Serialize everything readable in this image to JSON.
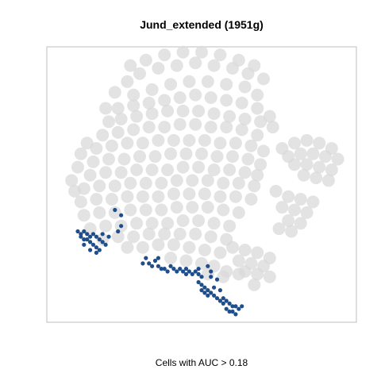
{
  "chart_data": {
    "type": "scatter",
    "title": "Jund_extended (1951g)",
    "xlabel": "Cells with AUC > 0.18",
    "ylabel": "",
    "grid": false,
    "legend": "none",
    "colors": {
      "background_cells": "#d9d9d9",
      "auc_cells": "#1f4e8c",
      "panel_border": "#bebebe"
    },
    "series": [
      {
        "role": "all cells",
        "color": "#d9d9d9",
        "points": [
          [
            -22,
            35
          ],
          [
            -18,
            38
          ],
          [
            -12,
            40
          ],
          [
            -6,
            41
          ],
          [
            0,
            42
          ],
          [
            6,
            41
          ],
          [
            12,
            40
          ],
          [
            17,
            38
          ],
          [
            -20,
            30
          ],
          [
            -14,
            32
          ],
          [
            -8,
            34
          ],
          [
            -2,
            35
          ],
          [
            4,
            35
          ],
          [
            10,
            34
          ],
          [
            16,
            33
          ],
          [
            20,
            30
          ],
          [
            -25,
            25
          ],
          [
            -20,
            26
          ],
          [
            -15,
            27
          ],
          [
            -10,
            28
          ],
          [
            -5,
            29
          ],
          [
            0,
            30
          ],
          [
            5,
            29
          ],
          [
            10,
            28
          ],
          [
            15,
            27
          ],
          [
            20,
            25
          ],
          [
            24,
            22
          ],
          [
            25,
            18
          ],
          [
            -28,
            20
          ],
          [
            -24,
            21
          ],
          [
            -19,
            22
          ],
          [
            -14,
            23
          ],
          [
            -9,
            24
          ],
          [
            -4,
            24
          ],
          [
            1,
            24
          ],
          [
            6,
            23
          ],
          [
            11,
            22
          ],
          [
            16,
            21
          ],
          [
            21,
            20
          ],
          [
            -30,
            15
          ],
          [
            -25,
            16
          ],
          [
            -20,
            17
          ],
          [
            -15,
            18
          ],
          [
            -10,
            18
          ],
          [
            -5,
            19
          ],
          [
            0,
            19
          ],
          [
            5,
            18
          ],
          [
            10,
            18
          ],
          [
            15,
            17
          ],
          [
            20,
            15
          ],
          [
            -32,
            10
          ],
          [
            -27,
            11
          ],
          [
            -22,
            12
          ],
          [
            -17,
            12
          ],
          [
            -12,
            13
          ],
          [
            -7,
            13
          ],
          [
            -2,
            13
          ],
          [
            3,
            13
          ],
          [
            8,
            12
          ],
          [
            13,
            12
          ],
          [
            18,
            11
          ],
          [
            22,
            9
          ],
          [
            -33,
            5
          ],
          [
            -28,
            6
          ],
          [
            -23,
            6
          ],
          [
            -18,
            7
          ],
          [
            -13,
            7
          ],
          [
            -8,
            8
          ],
          [
            -3,
            8
          ],
          [
            2,
            8
          ],
          [
            7,
            7
          ],
          [
            12,
            7
          ],
          [
            17,
            6
          ],
          [
            21,
            4
          ],
          [
            -34,
            0
          ],
          [
            -29,
            1
          ],
          [
            -24,
            1
          ],
          [
            -19,
            2
          ],
          [
            -14,
            2
          ],
          [
            -9,
            2
          ],
          [
            -4,
            3
          ],
          [
            1,
            3
          ],
          [
            6,
            2
          ],
          [
            11,
            2
          ],
          [
            16,
            1
          ],
          [
            20,
            0
          ],
          [
            -36,
            -5
          ],
          [
            -31,
            -4
          ],
          [
            -26,
            -4
          ],
          [
            -21,
            -3
          ],
          [
            -16,
            -3
          ],
          [
            -11,
            -3
          ],
          [
            -6,
            -2
          ],
          [
            -1,
            -2
          ],
          [
            4,
            -2
          ],
          [
            9,
            -3
          ],
          [
            14,
            -3
          ],
          [
            19,
            -4
          ],
          [
            -37,
            -10
          ],
          [
            -32,
            -9
          ],
          [
            -27,
            -9
          ],
          [
            -22,
            -8
          ],
          [
            -17,
            -8
          ],
          [
            -12,
            -8
          ],
          [
            -7,
            -7
          ],
          [
            -2,
            -7
          ],
          [
            3,
            -7
          ],
          [
            8,
            -8
          ],
          [
            13,
            -8
          ],
          [
            18,
            -9
          ],
          [
            -36,
            -15
          ],
          [
            -31,
            -14
          ],
          [
            -26,
            -14
          ],
          [
            -21,
            -13
          ],
          [
            -16,
            -13
          ],
          [
            -11,
            -13
          ],
          [
            -6,
            -12
          ],
          [
            -1,
            -12
          ],
          [
            4,
            -12
          ],
          [
            9,
            -13
          ],
          [
            14,
            -14
          ],
          [
            -34,
            -20
          ],
          [
            -29,
            -19
          ],
          [
            -24,
            -19
          ],
          [
            -19,
            -18
          ],
          [
            -14,
            -18
          ],
          [
            -9,
            -18
          ],
          [
            -4,
            -17
          ],
          [
            1,
            -17
          ],
          [
            6,
            -18
          ],
          [
            11,
            -19
          ],
          [
            -30,
            -24
          ],
          [
            -25,
            -23
          ],
          [
            -20,
            -23
          ],
          [
            -15,
            -22
          ],
          [
            -10,
            -22
          ],
          [
            -5,
            -22
          ],
          [
            0,
            -22
          ],
          [
            5,
            -23
          ],
          [
            10,
            -24
          ],
          [
            -22,
            -27
          ],
          [
            -17,
            -27
          ],
          [
            -12,
            -26
          ],
          [
            -7,
            -26
          ],
          [
            -2,
            -27
          ],
          [
            3,
            -28
          ],
          [
            8,
            -29
          ],
          [
            -8,
            -31
          ],
          [
            -3,
            -32
          ],
          [
            2,
            -33
          ],
          [
            6,
            -34
          ],
          [
            10,
            -36
          ],
          [
            14,
            -37
          ],
          [
            9,
            -38
          ],
          [
            4,
            -37
          ],
          [
            -40,
            -2
          ],
          [
            -39,
            -6
          ],
          [
            -38,
            3
          ],
          [
            -37,
            8
          ],
          [
            -35,
            12
          ],
          [
            28,
            10
          ],
          [
            32,
            12
          ],
          [
            36,
            13
          ],
          [
            40,
            12
          ],
          [
            44,
            10
          ],
          [
            30,
            7
          ],
          [
            34,
            8
          ],
          [
            38,
            8
          ],
          [
            42,
            7
          ],
          [
            46,
            6
          ],
          [
            32,
            4
          ],
          [
            36,
            4
          ],
          [
            40,
            3
          ],
          [
            44,
            2
          ],
          [
            35,
            0
          ],
          [
            39,
            -1
          ],
          [
            43,
            -2
          ],
          [
            26,
            -6
          ],
          [
            30,
            -8
          ],
          [
            34,
            -9
          ],
          [
            38,
            -10
          ],
          [
            28,
            -12
          ],
          [
            32,
            -13
          ],
          [
            36,
            -14
          ],
          [
            30,
            -17
          ],
          [
            34,
            -18
          ],
          [
            27,
            -20
          ],
          [
            31,
            -21
          ],
          [
            12,
            -27
          ],
          [
            16,
            -28
          ],
          [
            20,
            -29
          ],
          [
            24,
            -31
          ],
          [
            14,
            -32
          ],
          [
            18,
            -33
          ],
          [
            22,
            -34
          ],
          [
            16,
            -36
          ],
          [
            20,
            -37
          ],
          [
            24,
            -38
          ],
          [
            19,
            -41
          ],
          [
            -16,
            43
          ],
          [
            -10,
            45
          ],
          [
            -4,
            46
          ],
          [
            2,
            46
          ],
          [
            8,
            45
          ],
          [
            14,
            43
          ],
          [
            19,
            41
          ],
          [
            22,
            36
          ],
          [
            -21,
            41
          ],
          [
            -26,
            31
          ],
          [
            -29,
            25
          ]
        ]
      },
      {
        "role": "cells with AUC > 0.18",
        "color": "#1f4e8c",
        "points": [
          [
            -38,
            -21
          ],
          [
            -37,
            -22
          ],
          [
            -36,
            -21
          ],
          [
            -35,
            -22
          ],
          [
            -34,
            -23
          ],
          [
            -37,
            -23
          ],
          [
            -36,
            -24
          ],
          [
            -35,
            -24
          ],
          [
            -33,
            -22
          ],
          [
            -32,
            -23
          ],
          [
            -34,
            -25
          ],
          [
            -33,
            -26
          ],
          [
            -32,
            -27
          ],
          [
            -31,
            -24
          ],
          [
            -30,
            -25
          ],
          [
            -31,
            -28
          ],
          [
            -29,
            -26
          ],
          [
            -36,
            -26
          ],
          [
            -34,
            -28
          ],
          [
            -32,
            -29
          ],
          [
            -30,
            -22
          ],
          [
            -28,
            -23
          ],
          [
            -26,
            -13
          ],
          [
            -24,
            -15
          ],
          [
            -24,
            -19
          ],
          [
            -25,
            -21
          ],
          [
            -17,
            -33
          ],
          [
            -15,
            -33
          ],
          [
            -14,
            -34
          ],
          [
            -12,
            -34
          ],
          [
            -11,
            -35
          ],
          [
            -10,
            -35
          ],
          [
            -13,
            -32
          ],
          [
            -9,
            -36
          ],
          [
            -7,
            -35
          ],
          [
            -5,
            -35
          ],
          [
            -6,
            -36
          ],
          [
            -4,
            -36
          ],
          [
            -3,
            -37
          ],
          [
            -2,
            -36
          ],
          [
            -1,
            -37
          ],
          [
            0,
            -36
          ],
          [
            1,
            -37
          ],
          [
            2,
            -38
          ],
          [
            -8,
            -34
          ],
          [
            -16,
            -31
          ],
          [
            -12,
            -31
          ],
          [
            -3,
            -35
          ],
          [
            1,
            -35
          ],
          [
            4,
            -34
          ],
          [
            5,
            -36
          ],
          [
            1,
            -40
          ],
          [
            2,
            -41
          ],
          [
            3,
            -42
          ],
          [
            4,
            -43
          ],
          [
            3,
            -44
          ],
          [
            4,
            -45
          ],
          [
            5,
            -44
          ],
          [
            6,
            -45
          ],
          [
            2,
            -43
          ],
          [
            7,
            -46
          ],
          [
            8,
            -47
          ],
          [
            9,
            -48
          ],
          [
            10,
            -47
          ],
          [
            11,
            -48
          ],
          [
            12,
            -49
          ],
          [
            9,
            -46
          ],
          [
            10,
            -50
          ],
          [
            12,
            -51
          ],
          [
            13,
            -49
          ],
          [
            14,
            -50
          ],
          [
            15,
            -49
          ],
          [
            13,
            -52
          ],
          [
            11,
            -51
          ],
          [
            6,
            -42
          ],
          [
            7,
            -39
          ],
          [
            5,
            -38
          ],
          [
            8,
            -43
          ]
        ]
      }
    ],
    "xlim": [
      -48,
      52
    ],
    "ylim": [
      -55,
      48
    ]
  }
}
